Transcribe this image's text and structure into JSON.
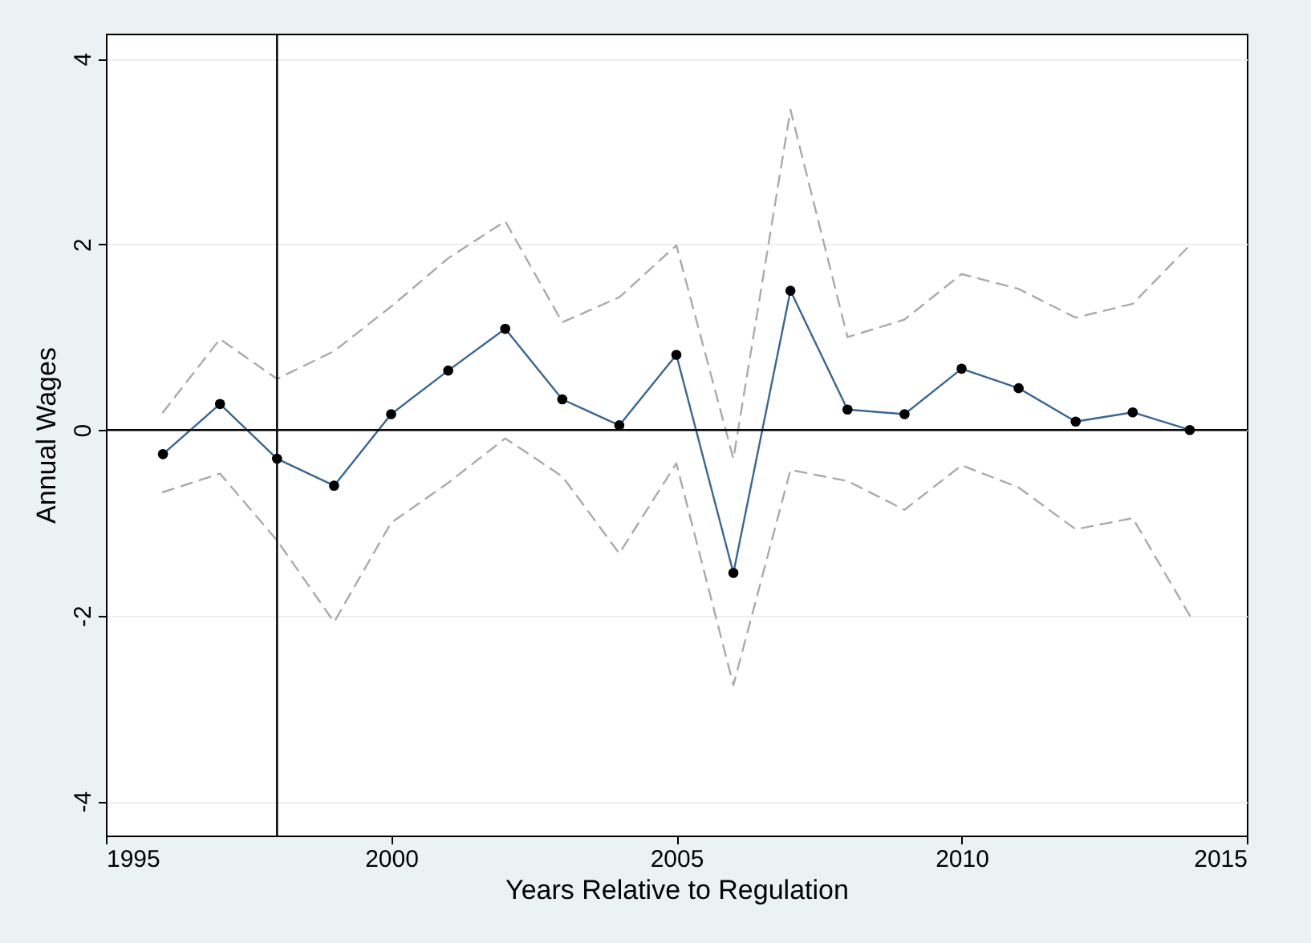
{
  "chart_data": {
    "type": "line",
    "xlabel": "Years Relative to Regulation",
    "ylabel": "Annual Wages",
    "x": [
      1996,
      1997,
      1998,
      1999,
      2000,
      2001,
      2002,
      2003,
      2004,
      2005,
      2006,
      2007,
      2008,
      2009,
      2010,
      2011,
      2012,
      2013,
      2014
    ],
    "series": [
      {
        "color": "#aaaaaa",
        "line_style": "dashed",
        "marker": "none",
        "values": [
          0.19,
          0.98,
          0.55,
          0.85,
          1.33,
          1.85,
          2.25,
          1.16,
          1.43,
          1.99,
          -0.31,
          3.45,
          1.0,
          1.19,
          1.68,
          1.52,
          1.21,
          1.36,
          1.99
        ]
      },
      {
        "color": "#aaaaaa",
        "line_style": "dashed",
        "marker": "none",
        "values": [
          -0.67,
          -0.47,
          -1.19,
          -2.07,
          -1.0,
          -0.57,
          -0.09,
          -0.5,
          -1.33,
          -0.36,
          -2.75,
          -0.43,
          -0.55,
          -0.86,
          -0.38,
          -0.62,
          -1.07,
          -0.95,
          -2.0
        ]
      },
      {
        "color": "#3a6690",
        "values": [
          -0.26,
          0.28,
          -0.31,
          -0.6,
          0.17,
          0.64,
          1.09,
          0.33,
          0.05,
          0.81,
          -1.54,
          1.5,
          0.22,
          0.17,
          0.66,
          0.45,
          0.09,
          0.19,
          0.0
        ]
      }
    ],
    "xlim": [
      1995,
      2015
    ],
    "xticks": [
      1995,
      2000,
      2005,
      2010,
      2015
    ],
    "ylim": [
      -4.37,
      4.27
    ],
    "yticks": [
      -4,
      -2,
      0,
      2,
      4
    ],
    "ref_lines": [
      {
        "axis": "x",
        "value": 1998,
        "color": "#000000"
      },
      {
        "axis": "y",
        "value": 0,
        "color": "#000000"
      }
    ],
    "grid": "y",
    "marker": "circle",
    "line_style": "solid"
  }
}
